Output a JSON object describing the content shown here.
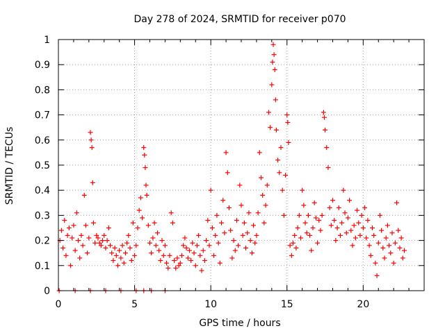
{
  "chart_data": {
    "type": "scatter",
    "title": "Day 278 of 2024, SRMTID for receiver p070",
    "xlabel": "GPS time / hours",
    "ylabel": "SRMTID / TECUs",
    "xlim": [
      0,
      24
    ],
    "ylim": [
      0,
      1
    ],
    "x_ticks": [
      0,
      5,
      10,
      15,
      20
    ],
    "x_tick_labels": [
      "0",
      "5",
      "10",
      "15",
      "20"
    ],
    "y_ticks": [
      0,
      0.1,
      0.2,
      0.3,
      0.4,
      0.5,
      0.6,
      0.7,
      0.8,
      0.9,
      1
    ],
    "y_tick_labels": [
      "0",
      "0.1",
      "0.2",
      "0.3",
      "0.4",
      "0.5",
      "0.6",
      "0.7",
      "0.8",
      "0.9",
      "1"
    ],
    "grid": true,
    "marker": "+",
    "series_color": "#ff0000",
    "series": [
      {
        "name": "SRMTID",
        "points": [
          [
            0.1,
            0.2
          ],
          [
            0.2,
            0.24
          ],
          [
            0.3,
            0.17
          ],
          [
            0.4,
            0.28
          ],
          [
            0.5,
            0.14
          ],
          [
            0.6,
            0.22
          ],
          [
            0.7,
            0.25
          ],
          [
            0.8,
            0.1
          ],
          [
            0.9,
            0.21
          ],
          [
            1.0,
            0.26
          ],
          [
            1.1,
            0.16
          ],
          [
            1.2,
            0.31
          ],
          [
            1.3,
            0.2
          ],
          [
            1.4,
            0.13
          ],
          [
            1.5,
            0.22
          ],
          [
            1.6,
            0.18
          ],
          [
            1.7,
            0.38
          ],
          [
            1.8,
            0.26
          ],
          [
            1.9,
            0.15
          ],
          [
            2.0,
            0.21
          ],
          [
            2.1,
            0.63
          ],
          [
            2.15,
            0.6
          ],
          [
            2.2,
            0.57
          ],
          [
            2.25,
            0.43
          ],
          [
            2.3,
            0.27
          ],
          [
            2.4,
            0.19
          ],
          [
            2.5,
            0.22
          ],
          [
            2.6,
            0.21
          ],
          [
            2.7,
            0.19
          ],
          [
            2.8,
            0.18
          ],
          [
            2.9,
            0.2
          ],
          [
            3.0,
            0.22
          ],
          [
            3.1,
            0.17
          ],
          [
            3.2,
            0.2
          ],
          [
            3.3,
            0.25
          ],
          [
            3.4,
            0.18
          ],
          [
            3.5,
            0.15
          ],
          [
            3.6,
            0.12
          ],
          [
            3.7,
            0.17
          ],
          [
            3.8,
            0.14
          ],
          [
            3.9,
            0.1
          ],
          [
            4.0,
            0.16
          ],
          [
            4.1,
            0.13
          ],
          [
            4.2,
            0.18
          ],
          [
            4.3,
            0.11
          ],
          [
            4.4,
            0.15
          ],
          [
            4.5,
            0.19
          ],
          [
            4.6,
            0.22
          ],
          [
            4.7,
            0.17
          ],
          [
            4.8,
            0.12
          ],
          [
            4.9,
            0.27
          ],
          [
            5.0,
            0.14
          ],
          [
            5.1,
            0.18
          ],
          [
            5.2,
            0.25
          ],
          [
            5.3,
            0.32
          ],
          [
            5.4,
            0.37
          ],
          [
            5.5,
            0.29
          ],
          [
            5.6,
            0.57
          ],
          [
            5.65,
            0.54
          ],
          [
            5.7,
            0.49
          ],
          [
            5.75,
            0.42
          ],
          [
            5.8,
            0.38
          ],
          [
            5.9,
            0.26
          ],
          [
            6.0,
            0.19
          ],
          [
            6.1,
            0.15
          ],
          [
            6.2,
            0.21
          ],
          [
            6.3,
            0.27
          ],
          [
            6.4,
            0.18
          ],
          [
            6.5,
            0.23
          ],
          [
            6.6,
            0.16
          ],
          [
            6.7,
            0.12
          ],
          [
            6.8,
            0.2
          ],
          [
            6.9,
            0.14
          ],
          [
            7.0,
            0.18
          ],
          [
            7.1,
            0.11
          ],
          [
            7.2,
            0.09
          ],
          [
            7.3,
            0.14
          ],
          [
            7.4,
            0.31
          ],
          [
            7.5,
            0.27
          ],
          [
            7.6,
            0.12
          ],
          [
            7.7,
            0.09
          ],
          [
            7.8,
            0.13
          ],
          [
            7.9,
            0.1
          ],
          [
            8.0,
            0.11
          ],
          [
            8.1,
            0.14
          ],
          [
            8.2,
            0.18
          ],
          [
            8.3,
            0.21
          ],
          [
            8.4,
            0.17
          ],
          [
            8.5,
            0.13
          ],
          [
            8.6,
            0.16
          ],
          [
            8.7,
            0.12
          ],
          [
            8.8,
            0.19
          ],
          [
            8.9,
            0.15
          ],
          [
            9.0,
            0.1
          ],
          [
            9.1,
            0.18
          ],
          [
            9.2,
            0.22
          ],
          [
            9.3,
            0.14
          ],
          [
            9.4,
            0.08
          ],
          [
            9.5,
            0.16
          ],
          [
            9.6,
            0.12
          ],
          [
            9.7,
            0.2
          ],
          [
            9.8,
            0.28
          ],
          [
            9.9,
            0.18
          ],
          [
            10.0,
            0.4
          ],
          [
            10.1,
            0.25
          ],
          [
            10.2,
            0.14
          ],
          [
            10.3,
            0.22
          ],
          [
            10.4,
            0.3
          ],
          [
            10.5,
            0.19
          ],
          [
            10.6,
            0.11
          ],
          [
            10.7,
            0.27
          ],
          [
            10.8,
            0.36
          ],
          [
            10.9,
            0.23
          ],
          [
            11.0,
            0.55
          ],
          [
            11.1,
            0.47
          ],
          [
            11.2,
            0.33
          ],
          [
            11.3,
            0.24
          ],
          [
            11.4,
            0.13
          ],
          [
            11.5,
            0.2
          ],
          [
            11.6,
            0.16
          ],
          [
            11.7,
            0.28
          ],
          [
            11.8,
            0.18
          ],
          [
            11.9,
            0.42
          ],
          [
            12.0,
            0.34
          ],
          [
            12.1,
            0.22
          ],
          [
            12.2,
            0.27
          ],
          [
            12.3,
            0.17
          ],
          [
            12.4,
            0.23
          ],
          [
            12.5,
            0.31
          ],
          [
            12.6,
            0.2
          ],
          [
            12.7,
            0.15
          ],
          [
            12.8,
            0.26
          ],
          [
            12.9,
            0.19
          ],
          [
            13.0,
            0.22
          ],
          [
            13.1,
            0.31
          ],
          [
            13.2,
            0.55
          ],
          [
            13.3,
            0.45
          ],
          [
            13.4,
            0.38
          ],
          [
            13.5,
            0.27
          ],
          [
            13.6,
            0.34
          ],
          [
            13.7,
            0.42
          ],
          [
            13.8,
            0.71
          ],
          [
            13.9,
            0.65
          ],
          [
            14.0,
            0.82
          ],
          [
            14.05,
            0.91
          ],
          [
            14.1,
            0.98
          ],
          [
            14.15,
            0.94
          ],
          [
            14.2,
            0.88
          ],
          [
            14.25,
            0.76
          ],
          [
            14.3,
            0.64
          ],
          [
            14.4,
            0.52
          ],
          [
            14.5,
            0.47
          ],
          [
            14.6,
            0.57
          ],
          [
            14.7,
            0.4
          ],
          [
            14.8,
            0.3
          ],
          [
            14.9,
            0.46
          ],
          [
            15.0,
            0.7
          ],
          [
            15.05,
            0.67
          ],
          [
            15.1,
            0.59
          ],
          [
            15.2,
            0.18
          ],
          [
            15.3,
            0.14
          ],
          [
            15.4,
            0.19
          ],
          [
            15.5,
            0.22
          ],
          [
            15.6,
            0.17
          ],
          [
            15.7,
            0.25
          ],
          [
            15.8,
            0.3
          ],
          [
            15.9,
            0.21
          ],
          [
            16.0,
            0.4
          ],
          [
            16.1,
            0.34
          ],
          [
            16.2,
            0.27
          ],
          [
            16.3,
            0.23
          ],
          [
            16.4,
            0.3
          ],
          [
            16.5,
            0.22
          ],
          [
            16.6,
            0.16
          ],
          [
            16.7,
            0.25
          ],
          [
            16.8,
            0.35
          ],
          [
            16.9,
            0.29
          ],
          [
            17.0,
            0.19
          ],
          [
            17.1,
            0.28
          ],
          [
            17.2,
            0.24
          ],
          [
            17.3,
            0.3
          ],
          [
            17.4,
            0.71
          ],
          [
            17.45,
            0.69
          ],
          [
            17.5,
            0.64
          ],
          [
            17.6,
            0.57
          ],
          [
            17.7,
            0.49
          ],
          [
            17.8,
            0.33
          ],
          [
            17.9,
            0.26
          ],
          [
            18.0,
            0.36
          ],
          [
            18.1,
            0.28
          ],
          [
            18.2,
            0.2
          ],
          [
            18.3,
            0.25
          ],
          [
            18.4,
            0.33
          ],
          [
            18.5,
            0.22
          ],
          [
            18.6,
            0.27
          ],
          [
            18.7,
            0.4
          ],
          [
            18.8,
            0.31
          ],
          [
            18.9,
            0.23
          ],
          [
            19.0,
            0.29
          ],
          [
            19.1,
            0.36
          ],
          [
            19.2,
            0.24
          ],
          [
            19.3,
            0.18
          ],
          [
            19.4,
            0.26
          ],
          [
            19.5,
            0.21
          ],
          [
            19.6,
            0.32
          ],
          [
            19.7,
            0.27
          ],
          [
            19.8,
            0.22
          ],
          [
            19.9,
            0.3
          ],
          [
            20.0,
            0.25
          ],
          [
            20.1,
            0.33
          ],
          [
            20.2,
            0.21
          ],
          [
            20.3,
            0.28
          ],
          [
            20.4,
            0.18
          ],
          [
            20.5,
            0.14
          ],
          [
            20.6,
            0.25
          ],
          [
            20.7,
            0.22
          ],
          [
            20.8,
            0.11
          ],
          [
            20.9,
            0.06
          ],
          [
            21.0,
            0.19
          ],
          [
            21.1,
            0.3
          ],
          [
            21.2,
            0.24
          ],
          [
            21.3,
            0.17
          ],
          [
            21.4,
            0.13
          ],
          [
            21.5,
            0.21
          ],
          [
            21.6,
            0.26
          ],
          [
            21.7,
            0.18
          ],
          [
            21.8,
            0.15
          ],
          [
            21.9,
            0.23
          ],
          [
            22.0,
            0.11
          ],
          [
            22.1,
            0.19
          ],
          [
            22.2,
            0.35
          ],
          [
            22.3,
            0.24
          ],
          [
            22.4,
            0.17
          ],
          [
            22.5,
            0.21
          ],
          [
            22.6,
            0.13
          ],
          [
            22.7,
            0.16
          ],
          [
            0.05,
            0.0
          ],
          [
            1.1,
            0.0
          ],
          [
            2.1,
            0.0
          ],
          [
            3.1,
            0.0
          ],
          [
            4.1,
            0.0
          ],
          [
            5.1,
            0.0
          ],
          [
            5.6,
            0.0
          ],
          [
            6.1,
            0.0
          ],
          [
            7.0,
            0.0
          ]
        ]
      }
    ]
  }
}
